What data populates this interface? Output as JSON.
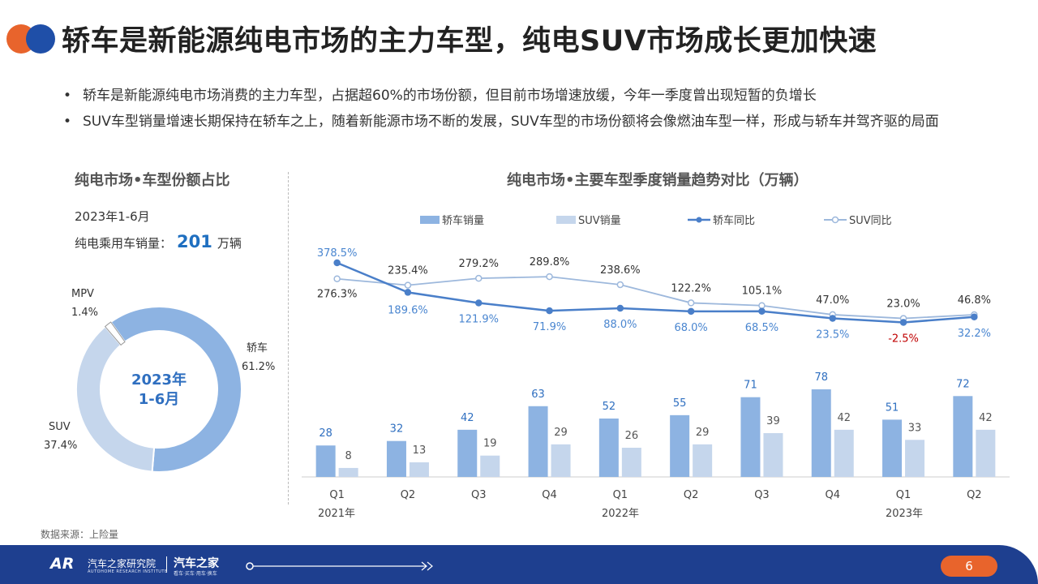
{
  "header": {
    "title": "轿车是新能源纯电市场的主力车型，纯电SUV市场成长更加快速"
  },
  "bullets": [
    "轿车是新能源纯电市场消费的主力车型，占据超60%的市场份额，但目前市场增速放缓，今年一季度曾出现短暂的负增长",
    "SUV车型销量增速长期保持在轿车之上，随着新能源市场不断的发展，SUV车型的市场份额将会像燃油车型一样，形成与轿车并驾齐驱的局面"
  ],
  "left_panel": {
    "title": "纯电市场•车型份额占比",
    "period": "2023年1-6月",
    "sales_label": "纯电乘用车销量：",
    "sales_value": "201",
    "sales_unit": "万辆",
    "center_label_line1": "2023年",
    "center_label_line2": "1-6月"
  },
  "right_panel": {
    "title": "纯电市场•主要车型季度销量趋势对比（万辆）"
  },
  "source": "数据来源：上险量",
  "footer": {
    "org_name": "汽车之家研究院",
    "org_sub": "AUTOHOME RESEARCH INSTITUTE",
    "brand": "汽车之家",
    "brand_sub": "看车·买车·用车·换车",
    "page": "6"
  },
  "colors": {
    "sedan": "#8db3e2",
    "suv": "#c5d6ec",
    "sedan_line": "#4a7fc9",
    "suv_line": "#9db8dc",
    "negative": "#c00000",
    "accent": "#e8642c",
    "footer": "#1e3f8f"
  },
  "chart_data": [
    {
      "type": "pie",
      "labels": [
        "轿车",
        "SUV",
        "MPV"
      ],
      "values": [
        61.2,
        37.4,
        1.4
      ],
      "value_labels": [
        "61.2%",
        "37.4%",
        "1.4%"
      ],
      "colors": [
        "#8db3e2",
        "#c5d6ec",
        "#ffffff"
      ]
    },
    {
      "type": "bar",
      "categories": [
        "Q1",
        "Q2",
        "Q3",
        "Q4",
        "Q1",
        "Q2",
        "Q3",
        "Q4",
        "Q1",
        "Q2"
      ],
      "year_labels": [
        "2021年",
        "2022年",
        "2023年"
      ],
      "series": [
        {
          "name": "轿车销量",
          "values": [
            28,
            32,
            42,
            63,
            52,
            55,
            71,
            78,
            51,
            72
          ]
        },
        {
          "name": "SUV销量",
          "values": [
            8,
            13,
            19,
            29,
            26,
            29,
            39,
            42,
            33,
            42
          ]
        }
      ],
      "line_series": [
        {
          "name": "轿车同比",
          "values": [
            378.5,
            189.6,
            121.9,
            71.9,
            88.0,
            68.0,
            68.5,
            23.5,
            -2.5,
            32.2
          ],
          "labels": [
            "378.5%",
            "189.6%",
            "121.9%",
            "71.9%",
            "88.0%",
            "68.0%",
            "68.5%",
            "23.5%",
            "-2.5%",
            "32.2%"
          ]
        },
        {
          "name": "SUV同比",
          "values": [
            276.3,
            235.4,
            279.2,
            289.8,
            238.6,
            122.2,
            105.1,
            47.0,
            23.0,
            46.8
          ],
          "labels": [
            "276.3%",
            "235.4%",
            "279.2%",
            "289.8%",
            "238.6%",
            "122.2%",
            "105.1%",
            "47.0%",
            "23.0%",
            "46.8%"
          ]
        }
      ]
    }
  ]
}
